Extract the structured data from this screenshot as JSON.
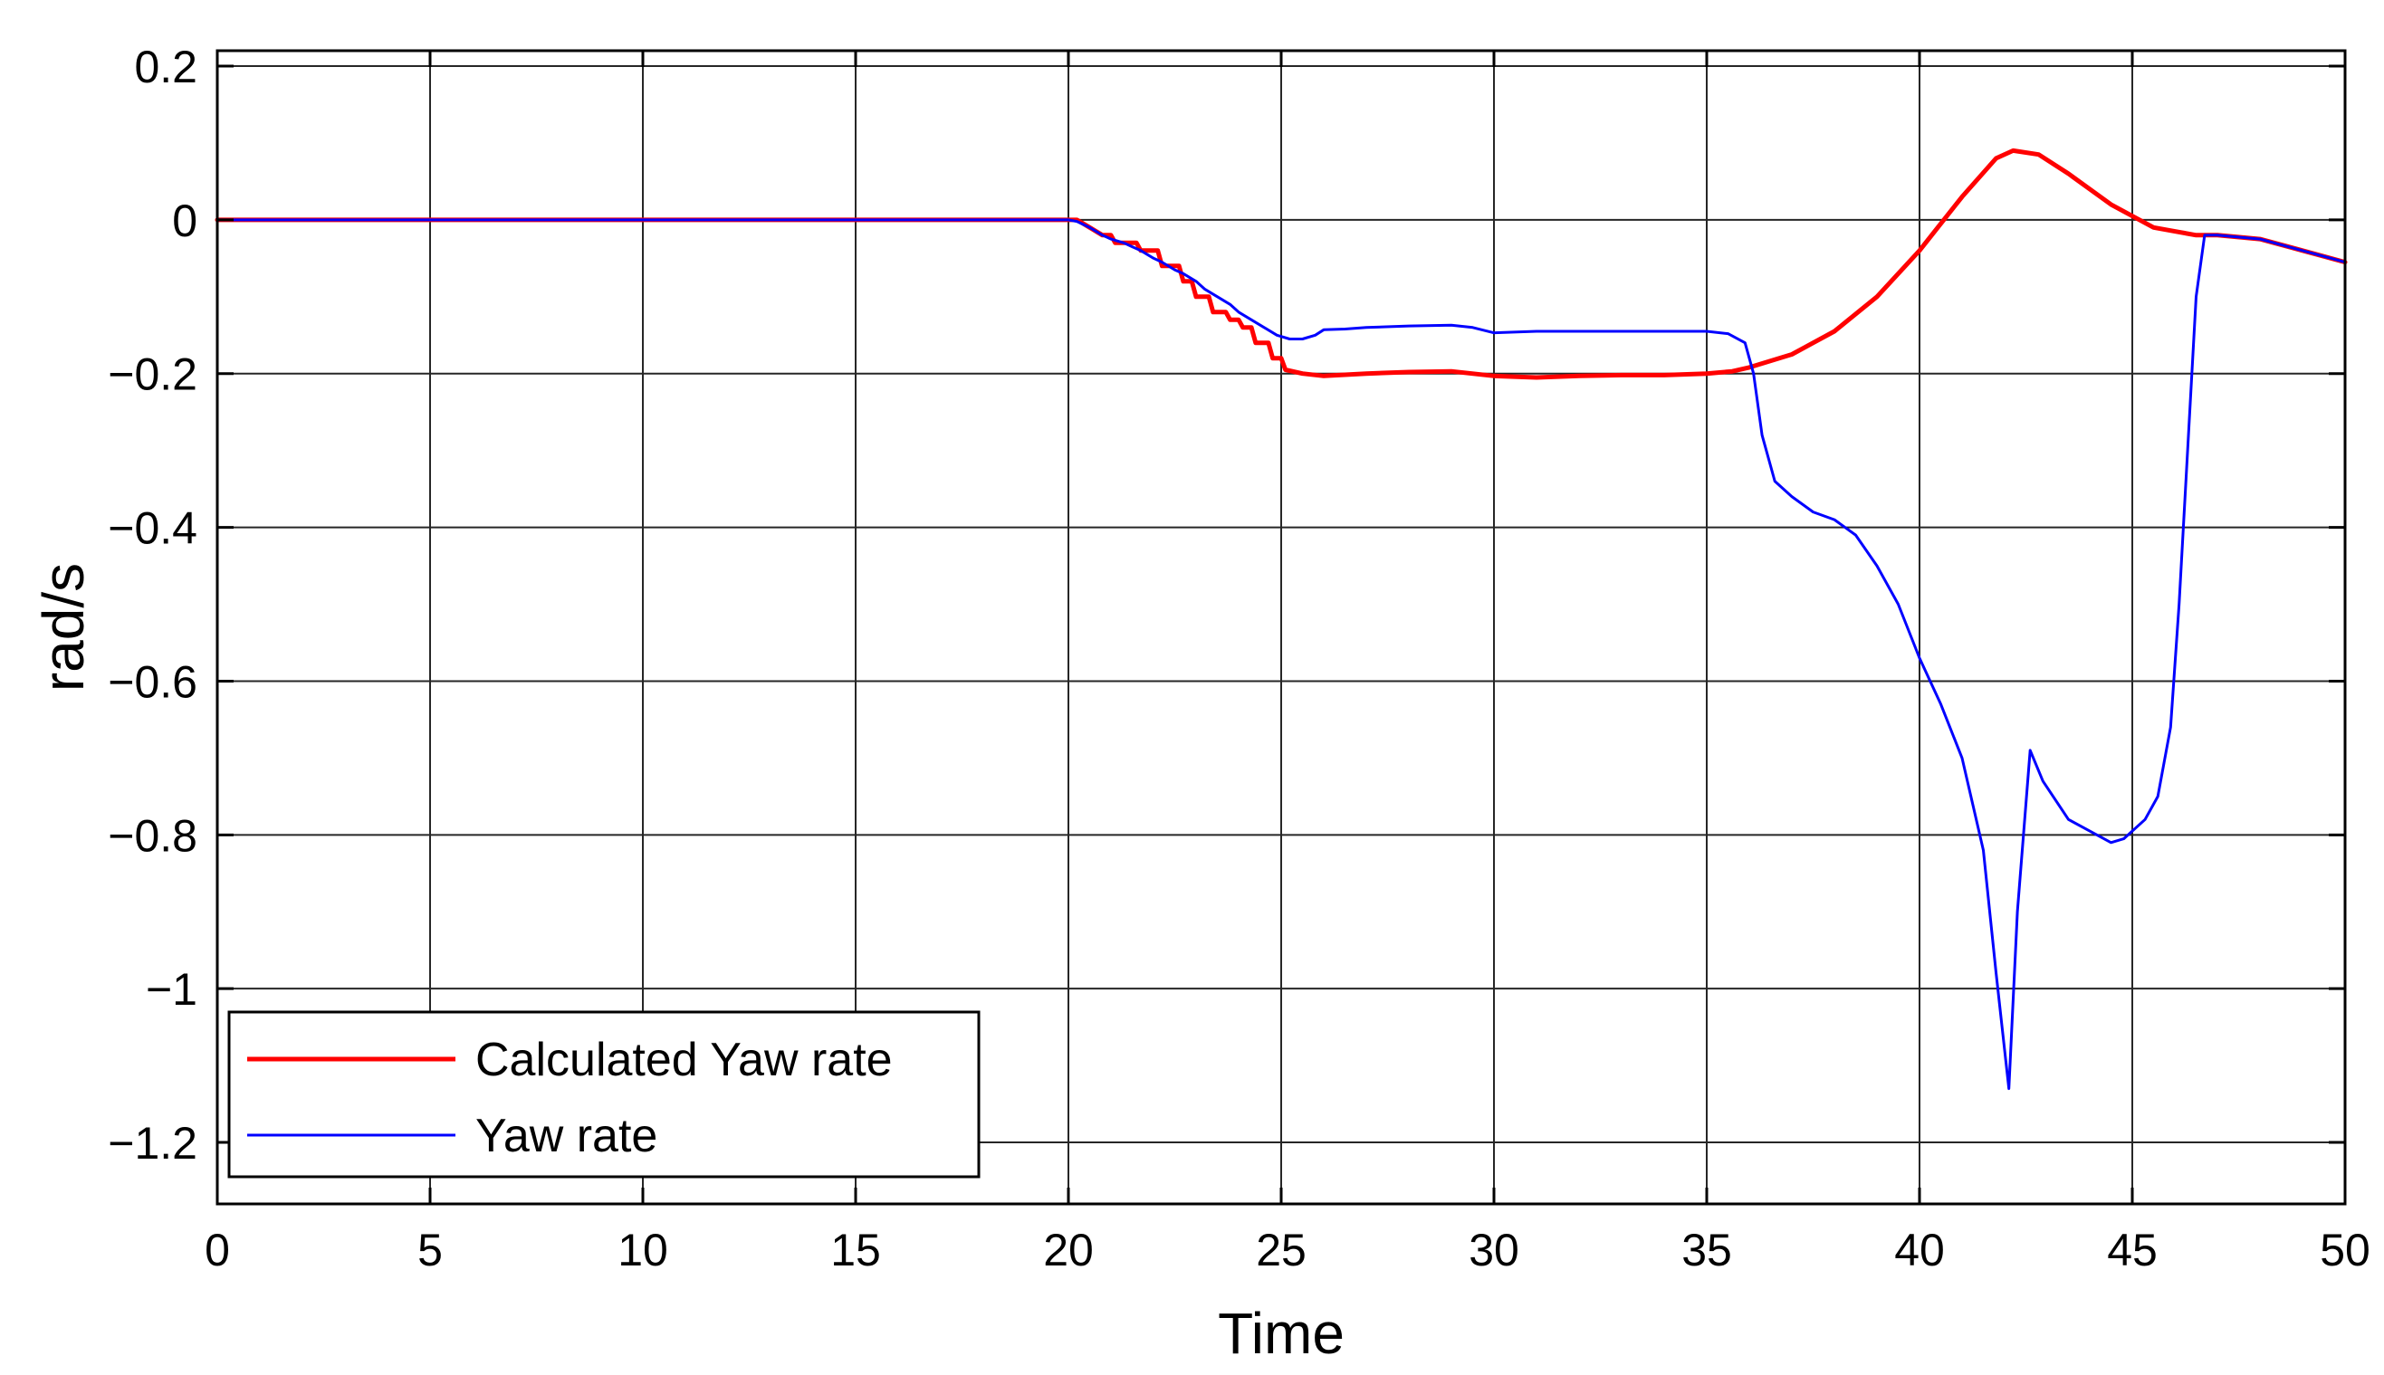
{
  "chart_data": {
    "type": "line",
    "title": "",
    "xlabel": "Time",
    "ylabel": "rad/s",
    "xlim": [
      0,
      50
    ],
    "ylim": [
      -1.28,
      0.22
    ],
    "grid": true,
    "legend_position": "bottom-left",
    "x_ticks": [
      0,
      5,
      10,
      15,
      20,
      25,
      30,
      35,
      40,
      45,
      50
    ],
    "x_tick_labels": [
      "0",
      "5",
      "10",
      "15",
      "20",
      "25",
      "30",
      "35",
      "40",
      "45",
      "50"
    ],
    "y_ticks": [
      0.2,
      0,
      -0.2,
      -0.4,
      -0.6,
      -0.8,
      -1,
      -1.2
    ],
    "y_tick_labels": [
      "0.2",
      "0",
      "−0.2",
      "−0.4",
      "−0.6",
      "−0.8",
      "−1",
      "−1.2"
    ],
    "series": [
      {
        "name": "Calculated Yaw rate",
        "color": "#ff0000",
        "points": [
          [
            0,
            0
          ],
          [
            20,
            0
          ],
          [
            20.2,
            0
          ],
          [
            20.5,
            -0.01
          ],
          [
            20.8,
            -0.02
          ],
          [
            21,
            -0.02
          ],
          [
            21.1,
            -0.03
          ],
          [
            21.6,
            -0.03
          ],
          [
            21.7,
            -0.04
          ],
          [
            22.1,
            -0.04
          ],
          [
            22.2,
            -0.06
          ],
          [
            22.6,
            -0.06
          ],
          [
            22.7,
            -0.08
          ],
          [
            22.9,
            -0.08
          ],
          [
            23.0,
            -0.1
          ],
          [
            23.3,
            -0.1
          ],
          [
            23.4,
            -0.12
          ],
          [
            23.7,
            -0.12
          ],
          [
            23.8,
            -0.13
          ],
          [
            24.0,
            -0.13
          ],
          [
            24.1,
            -0.14
          ],
          [
            24.3,
            -0.14
          ],
          [
            24.4,
            -0.16
          ],
          [
            24.7,
            -0.16
          ],
          [
            24.8,
            -0.18
          ],
          [
            25.0,
            -0.18
          ],
          [
            25.1,
            -0.195
          ],
          [
            25.5,
            -0.2
          ],
          [
            26,
            -0.203
          ],
          [
            27,
            -0.2
          ],
          [
            28,
            -0.198
          ],
          [
            29,
            -0.197
          ],
          [
            30,
            -0.203
          ],
          [
            31,
            -0.205
          ],
          [
            32,
            -0.203
          ],
          [
            33,
            -0.202
          ],
          [
            34,
            -0.202
          ],
          [
            35,
            -0.2
          ],
          [
            35.6,
            -0.197
          ],
          [
            36,
            -0.192
          ],
          [
            37,
            -0.175
          ],
          [
            38,
            -0.145
          ],
          [
            39,
            -0.1
          ],
          [
            40,
            -0.04
          ],
          [
            41,
            0.03
          ],
          [
            41.8,
            0.08
          ],
          [
            42.2,
            0.09
          ],
          [
            42.8,
            0.085
          ],
          [
            43.5,
            0.06
          ],
          [
            44.5,
            0.02
          ],
          [
            45.5,
            -0.01
          ],
          [
            46.5,
            -0.02
          ],
          [
            47,
            -0.02
          ],
          [
            48,
            -0.025
          ],
          [
            49,
            -0.04
          ],
          [
            50,
            -0.055
          ]
        ]
      },
      {
        "name": "Yaw rate",
        "color": "#0000ff",
        "points": [
          [
            0,
            0
          ],
          [
            20,
            0
          ],
          [
            20.2,
            -0.002
          ],
          [
            20.5,
            -0.01
          ],
          [
            20.8,
            -0.02
          ],
          [
            21,
            -0.025
          ],
          [
            21.3,
            -0.03
          ],
          [
            21.5,
            -0.035
          ],
          [
            21.7,
            -0.04
          ],
          [
            22,
            -0.05
          ],
          [
            22.2,
            -0.055
          ],
          [
            22.5,
            -0.065
          ],
          [
            22.7,
            -0.07
          ],
          [
            23,
            -0.08
          ],
          [
            23.2,
            -0.09
          ],
          [
            23.5,
            -0.1
          ],
          [
            23.8,
            -0.11
          ],
          [
            24,
            -0.12
          ],
          [
            24.3,
            -0.13
          ],
          [
            24.6,
            -0.14
          ],
          [
            24.9,
            -0.15
          ],
          [
            25.2,
            -0.155
          ],
          [
            25.5,
            -0.155
          ],
          [
            25.8,
            -0.15
          ],
          [
            26,
            -0.143
          ],
          [
            26.5,
            -0.142
          ],
          [
            27,
            -0.14
          ],
          [
            28,
            -0.138
          ],
          [
            29,
            -0.137
          ],
          [
            29.5,
            -0.14
          ],
          [
            30,
            -0.147
          ],
          [
            31,
            -0.145
          ],
          [
            32,
            -0.145
          ],
          [
            33,
            -0.145
          ],
          [
            34,
            -0.145
          ],
          [
            35,
            -0.145
          ],
          [
            35.5,
            -0.148
          ],
          [
            35.9,
            -0.16
          ],
          [
            36.1,
            -0.2
          ],
          [
            36.3,
            -0.28
          ],
          [
            36.6,
            -0.34
          ],
          [
            37,
            -0.36
          ],
          [
            37.5,
            -0.38
          ],
          [
            38,
            -0.39
          ],
          [
            38.5,
            -0.41
          ],
          [
            39,
            -0.45
          ],
          [
            39.5,
            -0.5
          ],
          [
            40,
            -0.57
          ],
          [
            40.5,
            -0.63
          ],
          [
            41,
            -0.7
          ],
          [
            41.5,
            -0.82
          ],
          [
            41.8,
            -0.98
          ],
          [
            42.1,
            -1.13
          ],
          [
            42.3,
            -0.9
          ],
          [
            42.6,
            -0.69
          ],
          [
            42.9,
            -0.73
          ],
          [
            43.5,
            -0.78
          ],
          [
            44,
            -0.795
          ],
          [
            44.5,
            -0.81
          ],
          [
            44.8,
            -0.805
          ],
          [
            45.3,
            -0.78
          ],
          [
            45.6,
            -0.75
          ],
          [
            45.9,
            -0.66
          ],
          [
            46.1,
            -0.5
          ],
          [
            46.3,
            -0.3
          ],
          [
            46.5,
            -0.1
          ],
          [
            46.7,
            -0.02
          ],
          [
            47,
            -0.02
          ],
          [
            48,
            -0.025
          ],
          [
            49,
            -0.04
          ],
          [
            50,
            -0.055
          ]
        ]
      }
    ]
  }
}
